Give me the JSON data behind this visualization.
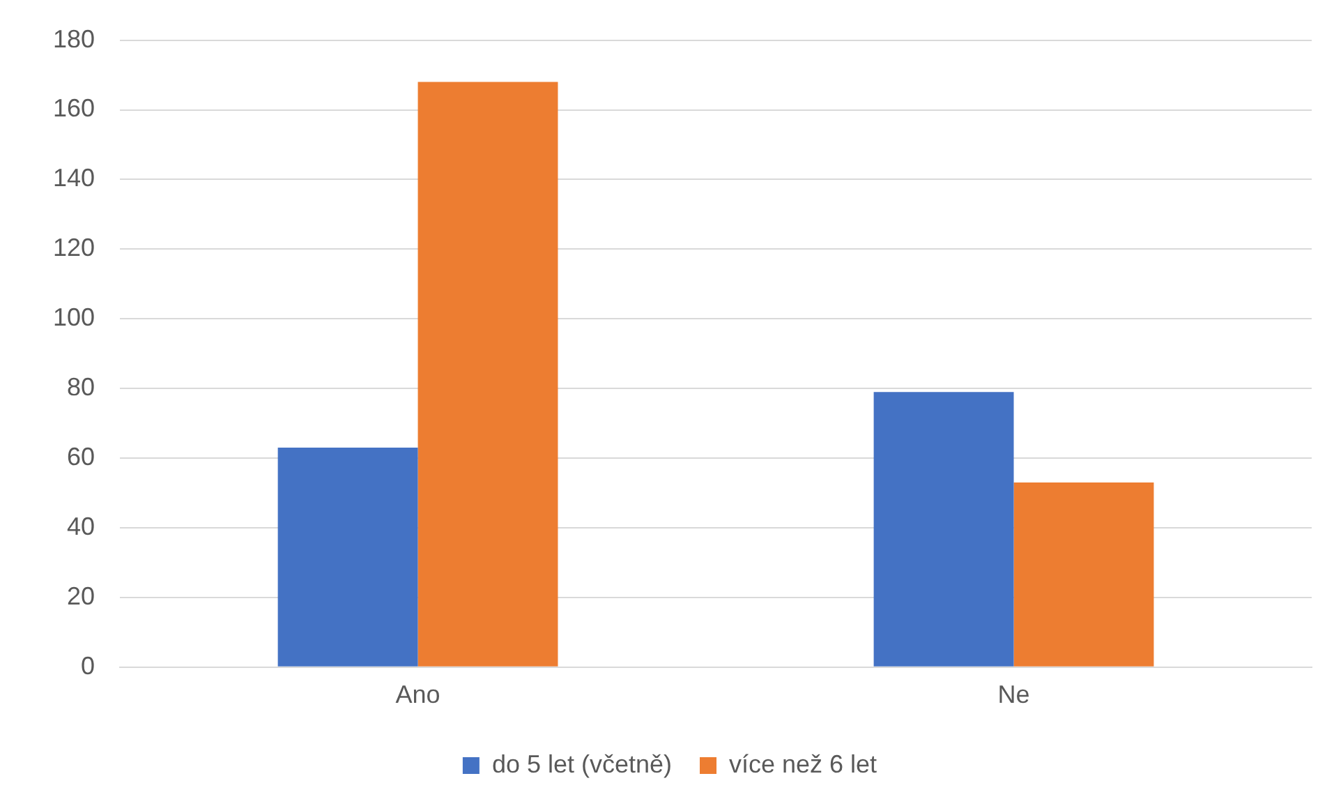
{
  "chart_data": {
    "type": "bar",
    "categories": [
      "Ano",
      "Ne"
    ],
    "series": [
      {
        "name": "do 5 let (včetně)",
        "color": "#4472c4",
        "values": [
          63,
          79
        ]
      },
      {
        "name": "více než 6 let",
        "color": "#ed7d31",
        "values": [
          168,
          53
        ]
      }
    ],
    "ylim": [
      0,
      180
    ],
    "yticks": [
      0,
      20,
      40,
      60,
      80,
      100,
      120,
      140,
      160,
      180
    ],
    "grid": "y",
    "legend": "bottom"
  }
}
